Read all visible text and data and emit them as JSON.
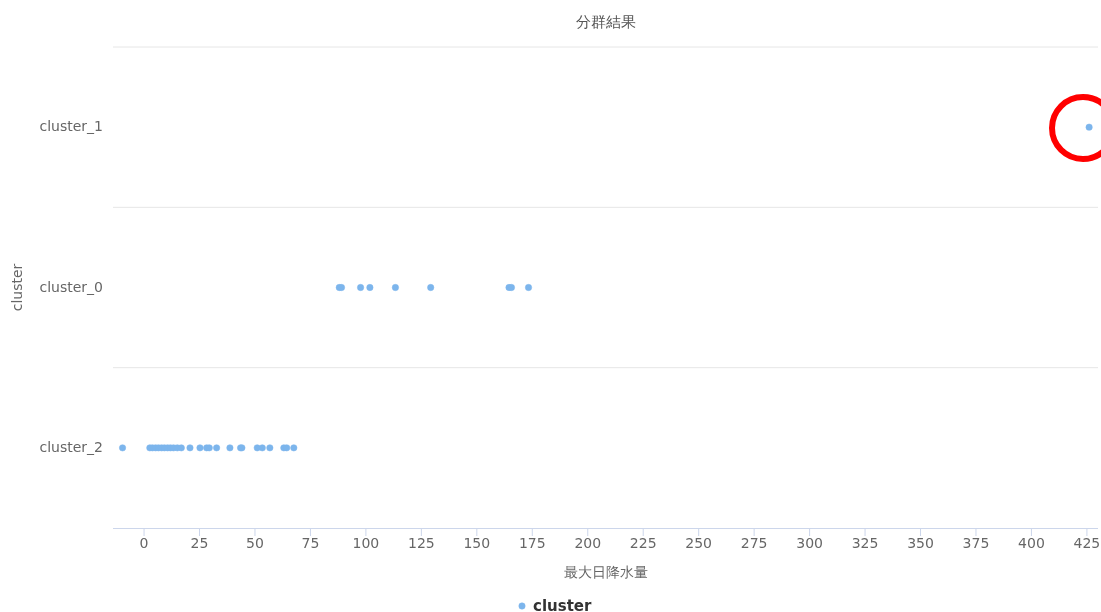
{
  "chart_data": {
    "type": "scatter",
    "orientation": "horizontal",
    "title": "分群結果",
    "xlabel": "最大日降水量",
    "ylabel": "cluster",
    "categories": [
      "cluster_1",
      "cluster_0",
      "cluster_2"
    ],
    "series": [
      {
        "name": "cluster",
        "color": "#7cb5ec",
        "x": [
          "cluster_1",
          "cluster_0",
          "cluster_0",
          "cluster_0",
          "cluster_0",
          "cluster_0",
          "cluster_0",
          "cluster_0",
          "cluster_0",
          "cluster_0",
          "cluster_2",
          "cluster_2",
          "cluster_2",
          "cluster_2",
          "cluster_2",
          "cluster_2",
          "cluster_2",
          "cluster_2",
          "cluster_2",
          "cluster_2",
          "cluster_2",
          "cluster_2",
          "cluster_2",
          "cluster_2",
          "cluster_2",
          "cluster_2",
          "cluster_2",
          "cluster_2",
          "cluster_2",
          "cluster_2",
          "cluster_2",
          "cluster_2",
          "cluster_2",
          "cluster_2",
          "cluster_2",
          "cluster_2"
        ],
        "values": [
          426,
          88,
          89,
          97.6,
          101.8,
          113.3,
          129.2,
          164.5,
          165.6,
          173.3,
          -9.7,
          2.6,
          3.8,
          5.2,
          6.5,
          7.9,
          9.2,
          10.6,
          11.9,
          13.3,
          15,
          16.8,
          20.7,
          25.2,
          28.2,
          29.4,
          32.7,
          38.7,
          43.5,
          44.1,
          51,
          53.3,
          56.7,
          63,
          64.3,
          67.5
        ]
      }
    ],
    "xlim": [
      -14,
      430
    ],
    "xticks": [
      0,
      25,
      50,
      75,
      100,
      125,
      150,
      175,
      200,
      225,
      250,
      275,
      300,
      325,
      350,
      375,
      400,
      425
    ],
    "grid": "y",
    "legend": "bottom",
    "marker": "circle"
  }
}
